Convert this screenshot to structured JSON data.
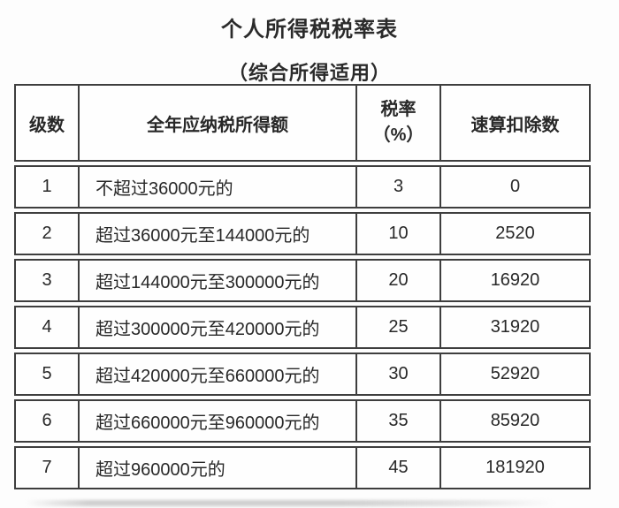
{
  "page": {
    "title": "个人所得税税率表",
    "subtitle": "（综合所得适用）"
  },
  "table": {
    "headers": {
      "level": "级数",
      "income": "全年应纳税所得额",
      "rate_line1": "税率",
      "rate_line2": "（%）",
      "deduction": "速算扣除数"
    },
    "rows": [
      {
        "level": "1",
        "income": "不超过36000元的",
        "rate": "3",
        "deduction": "0"
      },
      {
        "level": "2",
        "income": "超过36000元至144000元的",
        "rate": "10",
        "deduction": "2520"
      },
      {
        "level": "3",
        "income": "超过144000元至300000元的",
        "rate": "20",
        "deduction": "16920"
      },
      {
        "level": "4",
        "income": "超过300000元至420000元的",
        "rate": "25",
        "deduction": "31920"
      },
      {
        "level": "5",
        "income": "超过420000元至660000元的",
        "rate": "30",
        "deduction": "52920"
      },
      {
        "level": "6",
        "income": "超过660000元至960000元的",
        "rate": "35",
        "deduction": "85920"
      },
      {
        "level": "7",
        "income": "超过960000元的",
        "rate": "45",
        "deduction": "181920"
      }
    ]
  },
  "colors": {
    "background": "#fdfdfd",
    "table_border": "#3e3e3e",
    "text": "#282828"
  }
}
